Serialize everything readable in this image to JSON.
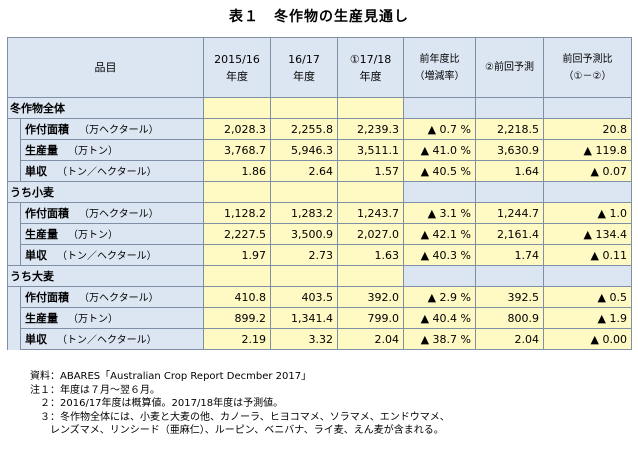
{
  "title": "表１　冬作物の生産見通し",
  "header": {
    "item": "品目",
    "col1": [
      "2015/16",
      "年度"
    ],
    "col2": [
      "16/17",
      "年度"
    ],
    "col3": [
      "①17/18",
      "年度"
    ],
    "col4": [
      "前年度比",
      "（増減率）"
    ],
    "col5": [
      "②前回予測"
    ],
    "col6": [
      "前回予測比",
      "（①－②）"
    ]
  },
  "groups": [
    {
      "name": "冬作物全体",
      "rows": [
        {
          "label": "作付面積",
          "unit": "（万ヘクタール）",
          "v1": "2,028.3",
          "v2": "2,255.8",
          "v3": "2,239.3",
          "v4": "▲ 0.7 %",
          "v5": "2,218.5",
          "v6": "20.8"
        },
        {
          "label": "生産量",
          "unit": "（万トン）",
          "v1": "3,768.7",
          "v2": "5,946.3",
          "v3": "3,511.1",
          "v4": "▲ 41.0 %",
          "v5": "3,630.9",
          "v6": "▲ 119.8"
        },
        {
          "label": "単収",
          "unit": "（トン／ヘクタール）",
          "v1": "1.86",
          "v2": "2.64",
          "v3": "1.57",
          "v4": "▲ 40.5 %",
          "v5": "1.64",
          "v6": "▲ 0.07"
        }
      ]
    },
    {
      "name": "うち小麦",
      "rows": [
        {
          "label": "作付面積",
          "unit": "（万ヘクタール）",
          "v1": "1,128.2",
          "v2": "1,283.2",
          "v3": "1,243.7",
          "v4": "▲ 3.1 %",
          "v5": "1,244.7",
          "v6": "▲ 1.0"
        },
        {
          "label": "生産量",
          "unit": "（万トン）",
          "v1": "2,227.5",
          "v2": "3,500.9",
          "v3": "2,027.0",
          "v4": "▲ 42.1 %",
          "v5": "2,161.4",
          "v6": "▲ 134.4"
        },
        {
          "label": "単収",
          "unit": "（トン／ヘクタール）",
          "v1": "1.97",
          "v2": "2.73",
          "v3": "1.63",
          "v4": "▲ 40.3 %",
          "v5": "1.74",
          "v6": "▲ 0.11"
        }
      ]
    },
    {
      "name": "うち大麦",
      "rows": [
        {
          "label": "作付面積",
          "unit": "（万ヘクタール）",
          "v1": "410.8",
          "v2": "403.5",
          "v3": "392.0",
          "v4": "▲ 2.9 %",
          "v5": "392.5",
          "v6": "▲ 0.5"
        },
        {
          "label": "生産量",
          "unit": "（万トン）",
          "v1": "899.2",
          "v2": "1,341.4",
          "v3": "799.0",
          "v4": "▲ 40.4 %",
          "v5": "800.9",
          "v6": "▲ 1.9"
        },
        {
          "label": "単収",
          "unit": "（トン／ヘクタール）",
          "v1": "2.19",
          "v2": "3.32",
          "v3": "2.04",
          "v4": "▲ 38.7 %",
          "v5": "2.04",
          "v6": "▲ 0.00"
        }
      ]
    }
  ],
  "notes": [
    "資料：ABARES「Australian Crop Report Decmber 2017」",
    "注１：年度は７月～翌６月。",
    "　２：2016/17年度は概算値。2017/18年度は予測値。",
    "　３：冬作物全体には、小麦と大麦の他、カノーラ、ヒヨコマメ、ソラマメ、エンドウマメ、",
    "　　レンズマメ、リンシード（亜麻仁）、ルーピン、ベニバナ、ライ麦、えん麦が含まれる。"
  ]
}
